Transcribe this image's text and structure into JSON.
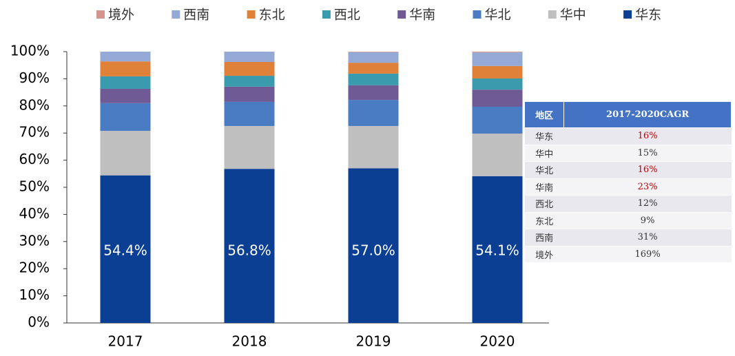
{
  "chart_data": {
    "type": "stacked_bar",
    "categories": [
      "2017",
      "2018",
      "2019",
      "2020"
    ],
    "series": [
      {
        "name": "境外",
        "color": "#d4958f",
        "values": [
          0,
          0,
          0.2,
          0.3
        ]
      },
      {
        "name": "西南",
        "color": "#95a9d6",
        "values": [
          3.6,
          3.8,
          3.9,
          5.0
        ]
      },
      {
        "name": "东北",
        "color": "#e0813a",
        "values": [
          5.5,
          5.1,
          4.0,
          4.6
        ]
      },
      {
        "name": "西北",
        "color": "#3a9aae",
        "values": [
          4.6,
          4.0,
          4.3,
          4.1
        ]
      },
      {
        "name": "华南",
        "color": "#6f5a96",
        "values": [
          5.3,
          5.6,
          5.4,
          6.3
        ]
      },
      {
        "name": "华北",
        "color": "#4a7cc4",
        "values": [
          10.2,
          8.9,
          9.6,
          9.9
        ]
      },
      {
        "name": "华中",
        "color": "#bfbfbf",
        "values": [
          16.4,
          15.8,
          15.6,
          15.7
        ]
      },
      {
        "name": "华东",
        "color": "#0b3f94",
        "values": [
          54.4,
          56.8,
          57.0,
          54.1
        ],
        "value_labels": [
          "54.4%",
          "56.8%",
          "57.0%",
          "54.1%"
        ]
      }
    ],
    "ylim": [
      0,
      100
    ],
    "yticks": [
      {
        "value": 0,
        "label": "0%"
      },
      {
        "value": 10,
        "label": "10%"
      },
      {
        "value": 20,
        "label": "20%"
      },
      {
        "value": 30,
        "label": "30%"
      },
      {
        "value": 40,
        "label": "40%"
      },
      {
        "value": 50,
        "label": "50%"
      },
      {
        "value": 60,
        "label": "60%"
      },
      {
        "value": 70,
        "label": "70%"
      },
      {
        "value": 80,
        "label": "80%"
      },
      {
        "value": 90,
        "label": "90%"
      },
      {
        "value": 100,
        "label": "100%"
      }
    ],
    "grid": false,
    "legend": "top"
  },
  "table": {
    "columns": [
      "地区",
      "2017-2020CAGR"
    ],
    "rows": [
      {
        "cells": [
          "华东",
          "16%"
        ],
        "color": "#c00000"
      },
      {
        "cells": [
          "华中",
          "15%"
        ],
        "color": "#333333"
      },
      {
        "cells": [
          "华北",
          "16%"
        ],
        "color": "#c00000"
      },
      {
        "cells": [
          "华南",
          "23%"
        ],
        "color": "#c00000"
      },
      {
        "cells": [
          "西北",
          "12%"
        ],
        "color": "#333333"
      },
      {
        "cells": [
          "东北",
          "9%"
        ],
        "color": "#333333"
      },
      {
        "cells": [
          "西南",
          "31%"
        ],
        "color": "#333333"
      },
      {
        "cells": [
          "境外",
          "169%"
        ],
        "color": "#333333"
      }
    ]
  }
}
